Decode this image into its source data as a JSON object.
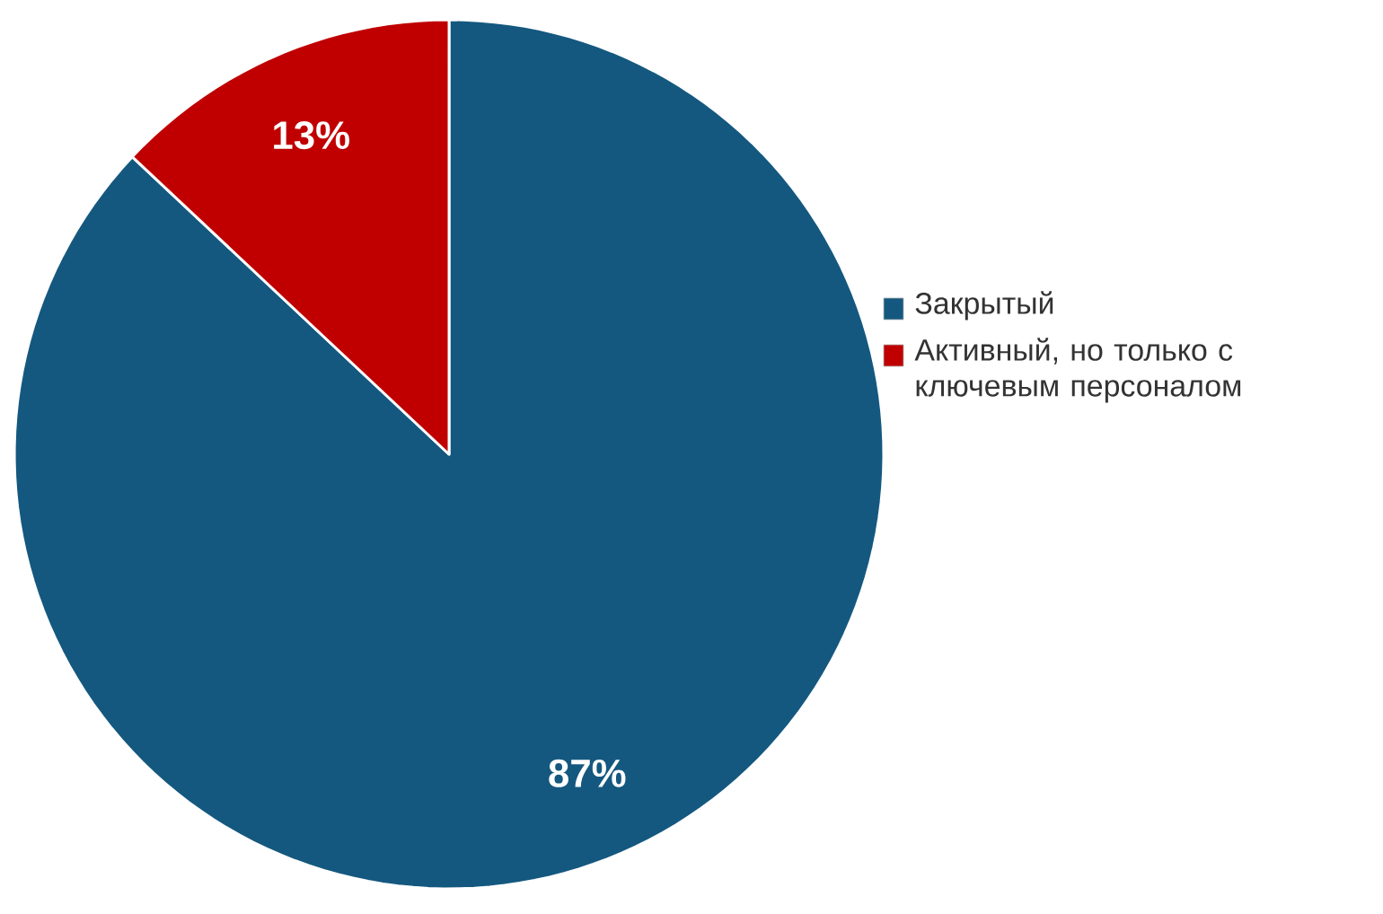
{
  "chart_data": {
    "type": "pie",
    "categories": [
      "Закрытый",
      "Активный, но только с ключевым персоналом"
    ],
    "values": [
      87,
      13
    ],
    "colors": [
      "#14587f",
      "#c00000"
    ],
    "data_labels": true,
    "value_labels": [
      "87%",
      "13%"
    ],
    "legend": "right"
  }
}
